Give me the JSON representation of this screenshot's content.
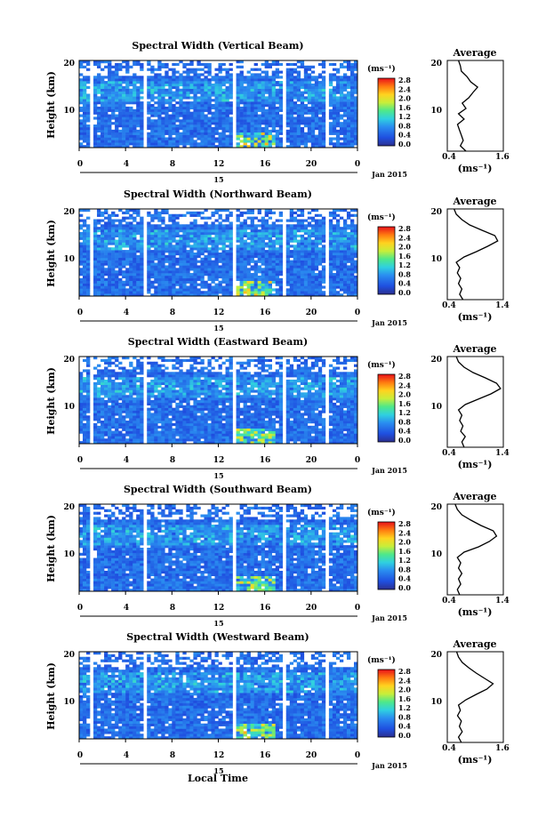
{
  "figure": {
    "x_axis_label": "Local Time",
    "date_label": "Jan 2015",
    "day_label": "15",
    "height_axis_label": "Height (km)",
    "colorbar_unit": "(ms⁻¹)",
    "average_title": "Average",
    "average_xlabel": "(ms⁻¹)"
  },
  "chart_data": [
    {
      "type": "heatmap",
      "title": "Spectral Width (Vertical Beam)",
      "xlabel": "Local Time",
      "ylabel": "Height (km)",
      "x_ticks": [
        "0",
        "4",
        "8",
        "12",
        "16",
        "20",
        "0"
      ],
      "y_ticks": [
        "10",
        "20"
      ],
      "xlim": [
        0,
        24
      ],
      "ylim": [
        3,
        20
      ],
      "colorbar": {
        "ticks": [
          "2.8",
          "2.4",
          "2.0",
          "1.6",
          "1.2",
          "0.8",
          "0.4",
          "0.0"
        ],
        "range": [
          0,
          3.0
        ]
      },
      "data_gaps_hours": [
        [
          1.0,
          1.2
        ],
        [
          5.6,
          5.9
        ],
        [
          13.1,
          13.4
        ],
        [
          17.1,
          17.3
        ],
        [
          17.6,
          17.9
        ],
        [
          21.2,
          21.5
        ]
      ],
      "average_profile": {
        "xlim": [
          0.4,
          1.6
        ],
        "x_ticks": [
          "0.4",
          "1.6"
        ],
        "y_ticks": [
          "10",
          "20"
        ],
        "height_km": [
          3,
          4,
          5,
          6,
          7,
          8,
          9,
          10,
          11,
          12,
          13,
          14,
          15,
          16,
          17,
          18,
          19,
          20
        ],
        "values": [
          0.8,
          0.68,
          0.74,
          0.7,
          0.66,
          0.62,
          0.76,
          0.64,
          0.8,
          0.72,
          0.86,
          0.95,
          1.05,
          0.9,
          0.82,
          0.7,
          0.68,
          0.64
        ]
      }
    },
    {
      "type": "heatmap",
      "title": "Spectral Width (Northward Beam)",
      "xlabel": "Local Time",
      "ylabel": "Height (km)",
      "x_ticks": [
        "0",
        "4",
        "8",
        "12",
        "16",
        "20",
        "0"
      ],
      "y_ticks": [
        "10",
        "20"
      ],
      "xlim": [
        0,
        24
      ],
      "ylim": [
        3,
        20
      ],
      "colorbar": {
        "ticks": [
          "2.8",
          "2.4",
          "2.0",
          "1.6",
          "1.2",
          "0.8",
          "0.4",
          "0.0"
        ],
        "range": [
          0,
          3.0
        ]
      },
      "data_gaps_hours": [
        [
          1.0,
          1.2
        ],
        [
          5.6,
          5.9
        ],
        [
          13.1,
          13.4
        ],
        [
          17.1,
          17.3
        ],
        [
          17.6,
          17.9
        ],
        [
          21.2,
          21.5
        ]
      ],
      "average_profile": {
        "xlim": [
          0.4,
          1.4
        ],
        "x_ticks": [
          "0.4",
          "1.4"
        ],
        "y_ticks": [
          "10",
          "20"
        ],
        "height_km": [
          3,
          4,
          5,
          6,
          7,
          8,
          9,
          10,
          11,
          12,
          13,
          14,
          15,
          16,
          17,
          18,
          19,
          20
        ],
        "values": [
          0.68,
          0.62,
          0.66,
          0.6,
          0.64,
          0.58,
          0.62,
          0.56,
          0.7,
          0.92,
          1.12,
          1.3,
          1.25,
          1.02,
          0.8,
          0.66,
          0.56,
          0.52
        ]
      }
    },
    {
      "type": "heatmap",
      "title": "Spectral Width (Eastward Beam)",
      "xlabel": "Local Time",
      "ylabel": "Height (km)",
      "x_ticks": [
        "0",
        "4",
        "8",
        "12",
        "16",
        "20",
        "0"
      ],
      "y_ticks": [
        "10",
        "20"
      ],
      "xlim": [
        0,
        24
      ],
      "ylim": [
        3,
        20
      ],
      "colorbar": {
        "ticks": [
          "2.8",
          "2.4",
          "2.0",
          "1.6",
          "1.2",
          "0.8",
          "0.4",
          "0.0"
        ],
        "range": [
          0,
          3.0
        ]
      },
      "data_gaps_hours": [
        [
          1.0,
          1.2
        ],
        [
          5.6,
          5.9
        ],
        [
          13.1,
          13.4
        ],
        [
          17.1,
          17.3
        ],
        [
          17.6,
          17.9
        ],
        [
          21.2,
          21.5
        ]
      ],
      "average_profile": {
        "xlim": [
          0.4,
          1.4
        ],
        "x_ticks": [
          "0.4",
          "1.4"
        ],
        "y_ticks": [
          "10",
          "20"
        ],
        "height_km": [
          3,
          4,
          5,
          6,
          7,
          8,
          9,
          10,
          11,
          12,
          13,
          14,
          15,
          16,
          17,
          18,
          19,
          20
        ],
        "values": [
          0.7,
          0.66,
          0.72,
          0.64,
          0.68,
          0.62,
          0.66,
          0.6,
          0.72,
          0.95,
          1.18,
          1.35,
          1.28,
          1.08,
          0.86,
          0.7,
          0.6,
          0.56
        ]
      }
    },
    {
      "type": "heatmap",
      "title": "Spectral Width (Southward Beam)",
      "xlabel": "Local Time",
      "ylabel": "Height (km)",
      "x_ticks": [
        "0",
        "4",
        "8",
        "12",
        "16",
        "20",
        "0"
      ],
      "y_ticks": [
        "10",
        "20"
      ],
      "xlim": [
        0,
        24
      ],
      "ylim": [
        3,
        20
      ],
      "colorbar": {
        "ticks": [
          "2.8",
          "2.4",
          "2.0",
          "1.6",
          "1.2",
          "0.8",
          "0.4",
          "0.0"
        ],
        "range": [
          0,
          3.0
        ]
      },
      "data_gaps_hours": [
        [
          1.0,
          1.2
        ],
        [
          5.6,
          5.9
        ],
        [
          13.1,
          13.4
        ],
        [
          17.1,
          17.3
        ],
        [
          17.6,
          17.9
        ],
        [
          21.2,
          21.5
        ]
      ],
      "average_profile": {
        "xlim": [
          0.4,
          1.4
        ],
        "x_ticks": [
          "0.4",
          "1.4"
        ],
        "y_ticks": [
          "10",
          "20"
        ],
        "height_km": [
          3,
          4,
          5,
          6,
          7,
          8,
          9,
          10,
          11,
          12,
          13,
          14,
          15,
          16,
          17,
          18,
          19,
          20
        ],
        "values": [
          0.62,
          0.58,
          0.64,
          0.6,
          0.66,
          0.6,
          0.64,
          0.58,
          0.7,
          0.96,
          1.15,
          1.28,
          1.22,
          1.0,
          0.82,
          0.66,
          0.58,
          0.54
        ]
      }
    },
    {
      "type": "heatmap",
      "title": "Spectral Width (Westward Beam)",
      "xlabel": "Local Time",
      "ylabel": "Height (km)",
      "x_ticks": [
        "0",
        "4",
        "8",
        "12",
        "16",
        "20",
        "0"
      ],
      "y_ticks": [
        "10",
        "20"
      ],
      "xlim": [
        0,
        24
      ],
      "ylim": [
        3,
        20
      ],
      "colorbar": {
        "ticks": [
          "2.8",
          "2.4",
          "2.0",
          "1.6",
          "1.2",
          "0.8",
          "0.4",
          "0.0"
        ],
        "range": [
          0,
          3.0
        ]
      },
      "data_gaps_hours": [
        [
          1.0,
          1.2
        ],
        [
          5.6,
          5.9
        ],
        [
          13.1,
          13.4
        ],
        [
          17.1,
          17.3
        ],
        [
          17.6,
          17.9
        ],
        [
          21.2,
          21.5
        ]
      ],
      "average_profile": {
        "xlim": [
          0.4,
          1.6
        ],
        "x_ticks": [
          "0.4",
          "1.6"
        ],
        "y_ticks": [
          "10",
          "20"
        ],
        "height_km": [
          3,
          4,
          5,
          6,
          7,
          8,
          9,
          10,
          11,
          12,
          13,
          14,
          15,
          16,
          17,
          18,
          19,
          20
        ],
        "values": [
          0.7,
          0.64,
          0.72,
          0.66,
          0.7,
          0.62,
          0.68,
          0.64,
          0.8,
          1.02,
          1.25,
          1.38,
          1.2,
          1.02,
          0.86,
          0.72,
          0.64,
          0.6
        ]
      }
    }
  ]
}
